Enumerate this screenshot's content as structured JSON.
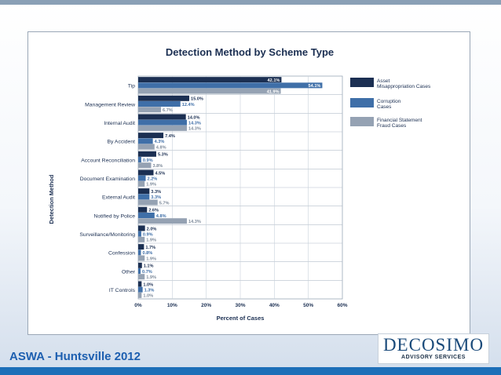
{
  "slide": {
    "footer_title": "ASWA - Huntsville 2012",
    "logo_main": "DECOSIMO",
    "logo_sub": "ADVISORY SERVICES",
    "colors": {
      "header_band": "#8aa0b6",
      "footer_band": "#1d6fb8",
      "footer_text": "#1d5fb0"
    }
  },
  "chart_data": {
    "type": "bar",
    "orientation": "horizontal",
    "title": "Detection Method by Scheme Type",
    "xlabel": "Percent of Cases",
    "ylabel": "Detection Method",
    "xlim": [
      0,
      60
    ],
    "xticks": [
      "0%",
      "10%",
      "20%",
      "30%",
      "40%",
      "50%",
      "60%"
    ],
    "grid": true,
    "legend_position": "right",
    "categories": [
      "Tip",
      "Management Review",
      "Internal Audit",
      "By Accident",
      "Account Reconciliation",
      "Document Examination",
      "External Audit",
      "Notified by Police",
      "Surveillance/Monitoring",
      "Confession",
      "Other",
      "IT Controls"
    ],
    "series": [
      {
        "name": "Asset Misappropriation Cases",
        "color": "#1b2f52",
        "values": [
          42.1,
          15.0,
          14.0,
          7.4,
          5.3,
          4.5,
          3.3,
          2.6,
          2.0,
          1.7,
          1.1,
          1.0
        ],
        "labels": [
          "42.1%",
          "15.0%",
          "14.0%",
          "7.4%",
          "5.3%",
          "4.5%",
          "3.3%",
          "2.6%",
          "2.0%",
          "1.7%",
          "1.1%",
          "1.0%"
        ]
      },
      {
        "name": "Corruption Cases",
        "color": "#3f6fa8",
        "values": [
          54.1,
          12.4,
          14.3,
          4.3,
          0.9,
          2.2,
          3.3,
          4.8,
          0.9,
          0.8,
          0.7,
          1.3
        ],
        "labels": [
          "54.1%",
          "12.4%",
          "14.3%",
          "4.3%",
          "0.9%",
          "2.2%",
          "3.3%",
          "4.8%",
          "0.9%",
          "0.8%",
          "0.7%",
          "1.3%"
        ]
      },
      {
        "name": "Financial Statement Fraud Cases",
        "color": "#95a2b3",
        "values": [
          41.9,
          6.7,
          14.3,
          4.8,
          3.8,
          1.9,
          5.7,
          14.3,
          1.9,
          1.9,
          1.9,
          1.0
        ],
        "labels": [
          "41.9%",
          "6.7%",
          "14.3%",
          "4.8%",
          "3.8%",
          "1.9%",
          "5.7%",
          "14.3%",
          "1.9%",
          "1.9%",
          "1.9%",
          "1.0%"
        ]
      }
    ],
    "legend_lines": [
      [
        "Asset",
        "Misappropriation Cases"
      ],
      [
        "Corruption",
        "Cases"
      ],
      [
        "Financial Statement",
        "Fraud Cases"
      ]
    ]
  }
}
